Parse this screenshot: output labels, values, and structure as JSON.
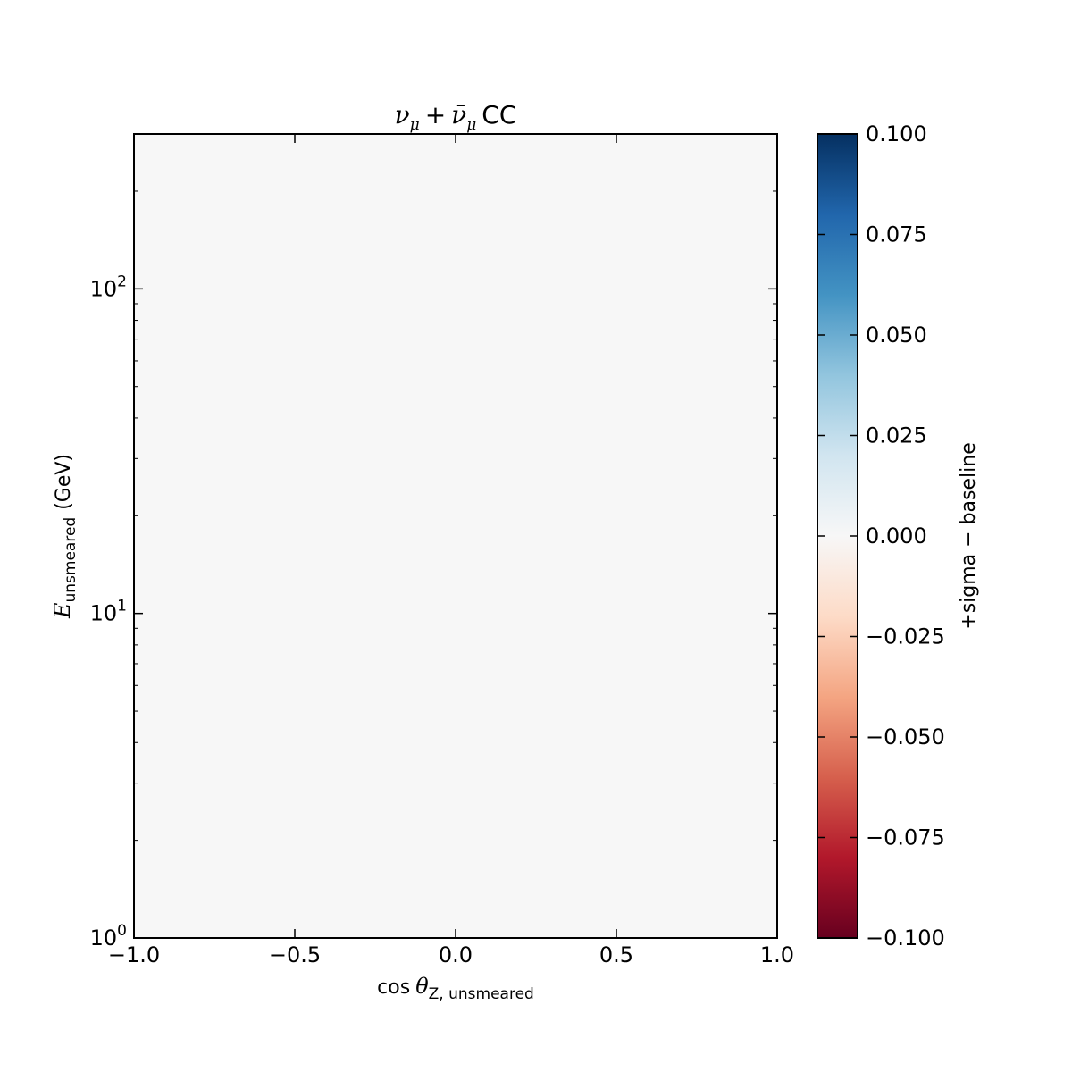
{
  "chart_data": {
    "type": "heatmap",
    "title": {
      "nu": "ν",
      "sub_mu": "μ",
      "plus": "+",
      "nubar": "ν̄",
      "sub_mu2": "μ",
      "cc": "CC"
    },
    "xlabel": {
      "cos": "cos",
      "theta": "θ",
      "sub": "Z, unsmeared"
    },
    "ylabel": {
      "e": "E",
      "sub": "unsmeared",
      "unit": "(GeV)"
    },
    "x_range": [
      -1.0,
      1.0
    ],
    "y_range": [
      1,
      300
    ],
    "y_scale": "log",
    "x_ticks": [
      {
        "value": -1.0,
        "label": "−1.0"
      },
      {
        "value": -0.5,
        "label": "−0.5"
      },
      {
        "value": 0.0,
        "label": "0.0"
      },
      {
        "value": 0.5,
        "label": "0.5"
      },
      {
        "value": 1.0,
        "label": "1.0"
      }
    ],
    "y_ticks": [
      {
        "value": 1,
        "base": "10",
        "exp": "0"
      },
      {
        "value": 10,
        "base": "10",
        "exp": "1"
      },
      {
        "value": 100,
        "base": "10",
        "exp": "2"
      }
    ],
    "cells": [
      {
        "x": [
          -1.0,
          1.0
        ],
        "y": [
          1,
          300
        ],
        "value": 0.0
      }
    ],
    "colorbar": {
      "range": [
        -0.1,
        0.1
      ],
      "colormap": "RdBu",
      "label": "+sigma − baseline",
      "ticks": [
        {
          "value": 0.1,
          "label": "0.100"
        },
        {
          "value": 0.075,
          "label": "0.075"
        },
        {
          "value": 0.05,
          "label": "0.050"
        },
        {
          "value": 0.025,
          "label": "0.025"
        },
        {
          "value": 0.0,
          "label": "0.000"
        },
        {
          "value": -0.025,
          "label": "−0.025"
        },
        {
          "value": -0.05,
          "label": "−0.050"
        },
        {
          "value": -0.075,
          "label": "−0.075"
        },
        {
          "value": -0.1,
          "label": "−0.100"
        }
      ],
      "stops": [
        "#67001f",
        "#b2182b",
        "#d6604d",
        "#f4a582",
        "#fddbc7",
        "#f7f7f7",
        "#d1e5f0",
        "#92c5de",
        "#4393c3",
        "#2166ac",
        "#053061"
      ]
    }
  }
}
